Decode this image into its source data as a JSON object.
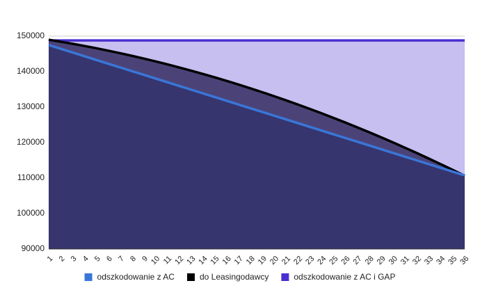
{
  "chart_data": {
    "type": "area",
    "categories": [
      "1",
      "2",
      "3",
      "4",
      "5",
      "6",
      "7",
      "8",
      "9",
      "10",
      "11",
      "12",
      "13",
      "14",
      "15",
      "16",
      "17",
      "18",
      "19",
      "20",
      "21",
      "22",
      "23",
      "24",
      "25",
      "26",
      "27",
      "28",
      "29",
      "30",
      "31",
      "32",
      "33",
      "34",
      "35",
      "36"
    ],
    "series": [
      {
        "name": "odszkodowanie z AC i GAP",
        "color": "#4a2fd0",
        "fill": "#c6bff0",
        "values": [
          148800,
          148800,
          148800,
          148800,
          148800,
          148800,
          148800,
          148800,
          148800,
          148800,
          148800,
          148800,
          148800,
          148800,
          148800,
          148800,
          148800,
          148800,
          148800,
          148800,
          148800,
          148800,
          148800,
          148800,
          148800,
          148800,
          148800,
          148800,
          148800,
          148800,
          148800,
          148800,
          148800,
          148800,
          148800,
          148800
        ]
      },
      {
        "name": "do Leasingodawcy",
        "color": "#000000",
        "fill": "#4b4378",
        "values": [
          149000,
          148448,
          147864,
          147248,
          146600,
          145920,
          145208,
          144464,
          143688,
          142880,
          142040,
          141168,
          140264,
          139328,
          138360,
          137360,
          136328,
          135264,
          134168,
          133040,
          131880,
          130688,
          129464,
          128208,
          126920,
          125600,
          124248,
          122864,
          121448,
          120000,
          118520,
          117008,
          115464,
          113888,
          112280,
          110640
        ]
      },
      {
        "name": "odszkodowanie z AC",
        "color": "#3a76d8",
        "fill": "#36356e",
        "values": [
          147500,
          146450,
          145400,
          144350,
          143300,
          142250,
          141200,
          140150,
          139100,
          138050,
          137000,
          135950,
          134900,
          133850,
          132800,
          131750,
          130700,
          129650,
          128600,
          127550,
          126500,
          125450,
          124400,
          123350,
          122300,
          121250,
          120200,
          119150,
          118100,
          117050,
          116000,
          114950,
          113900,
          112850,
          111800,
          110750
        ]
      }
    ],
    "legend_order": [
      2,
      1,
      0
    ],
    "ylim": [
      90000,
      150000
    ],
    "yticks": [
      90000,
      100000,
      110000,
      120000,
      130000,
      140000,
      150000
    ],
    "grid": true
  }
}
